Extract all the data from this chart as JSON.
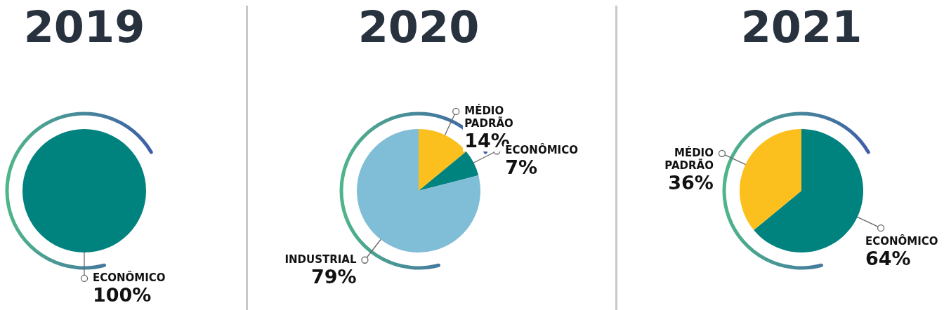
{
  "chart_data": [
    {
      "type": "pie",
      "title": "2019",
      "categories": [
        "ECONÔMICO"
      ],
      "values": [
        100
      ],
      "colors": [
        "#00827f"
      ],
      "value_labels": [
        "100%"
      ]
    },
    {
      "type": "pie",
      "title": "2020",
      "categories": [
        "MÉDIO PADRÃO",
        "ECONÔMICO",
        "INDUSTRIAL"
      ],
      "values": [
        14,
        7,
        79
      ],
      "colors": [
        "#fbbf1e",
        "#00827f",
        "#80bdd6"
      ],
      "value_labels": [
        "14%",
        "7%",
        "79%"
      ]
    },
    {
      "type": "pie",
      "title": "2021",
      "categories": [
        "ECONÔMICO",
        "MÉDIO PADRÃO"
      ],
      "values": [
        64,
        36
      ],
      "colors": [
        "#00827f",
        "#fbbf1e"
      ],
      "value_labels": [
        "64%",
        "36%"
      ]
    }
  ]
}
